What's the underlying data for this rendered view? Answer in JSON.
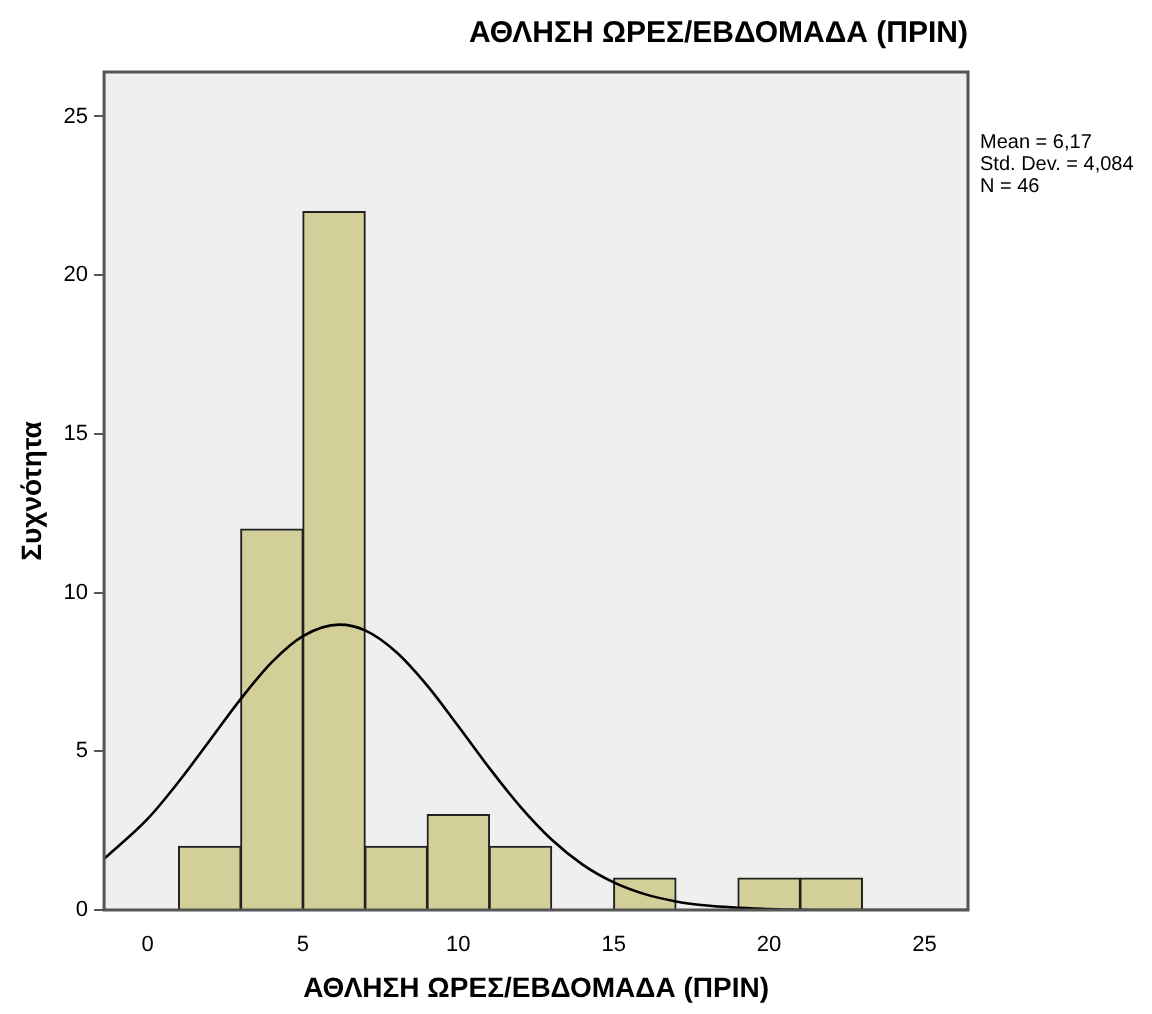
{
  "chart_data": {
    "type": "histogram",
    "title": "ΑΘΛΗΣΗ ΩΡΕΣ/ΕΒΔΟΜΑΔΑ (ΠΡΙΝ)",
    "xlabel": "ΑΘΛΗΣΗ ΩΡΕΣ/ΕΒΔΟΜΑΔΑ (ΠΡΙΝ)",
    "ylabel": "Συχνότητα",
    "bins": [
      1,
      3,
      5,
      7,
      9,
      11,
      13,
      15,
      17,
      19,
      21,
      23
    ],
    "values": [
      2,
      12,
      22,
      2,
      3,
      2,
      0,
      1,
      0,
      1,
      1
    ],
    "color": "#d3cf98",
    "series": [
      {
        "type": "line",
        "color": "#000000",
        "x": [
          -1.4,
          0,
          1,
          2,
          3,
          4,
          5,
          6.17,
          7,
          8,
          9,
          10,
          11,
          12,
          13,
          14,
          15,
          16,
          17,
          18,
          20,
          22,
          26.4
        ],
        "values": [
          1.61,
          2.87,
          4.04,
          5.34,
          6.65,
          7.81,
          8.63,
          8.99,
          8.81,
          8.13,
          7.07,
          5.79,
          4.47,
          3.25,
          2.22,
          1.43,
          0.87,
          0.5,
          0.27,
          0.14,
          0.03,
          0,
          0
        ]
      }
    ],
    "xlim": [
      -1.4,
      26.4
    ],
    "ylim": [
      0,
      26.4
    ],
    "xticks": [
      0,
      5,
      10,
      15,
      20,
      25
    ],
    "yticks": [
      0,
      5,
      10,
      15,
      20,
      25
    ],
    "grid": false,
    "legend": false,
    "marker": "none",
    "line_style": "solid",
    "annotations": [
      "Mean = 6,17",
      "Std. Dev. = 4,084",
      "N = 46"
    ]
  }
}
